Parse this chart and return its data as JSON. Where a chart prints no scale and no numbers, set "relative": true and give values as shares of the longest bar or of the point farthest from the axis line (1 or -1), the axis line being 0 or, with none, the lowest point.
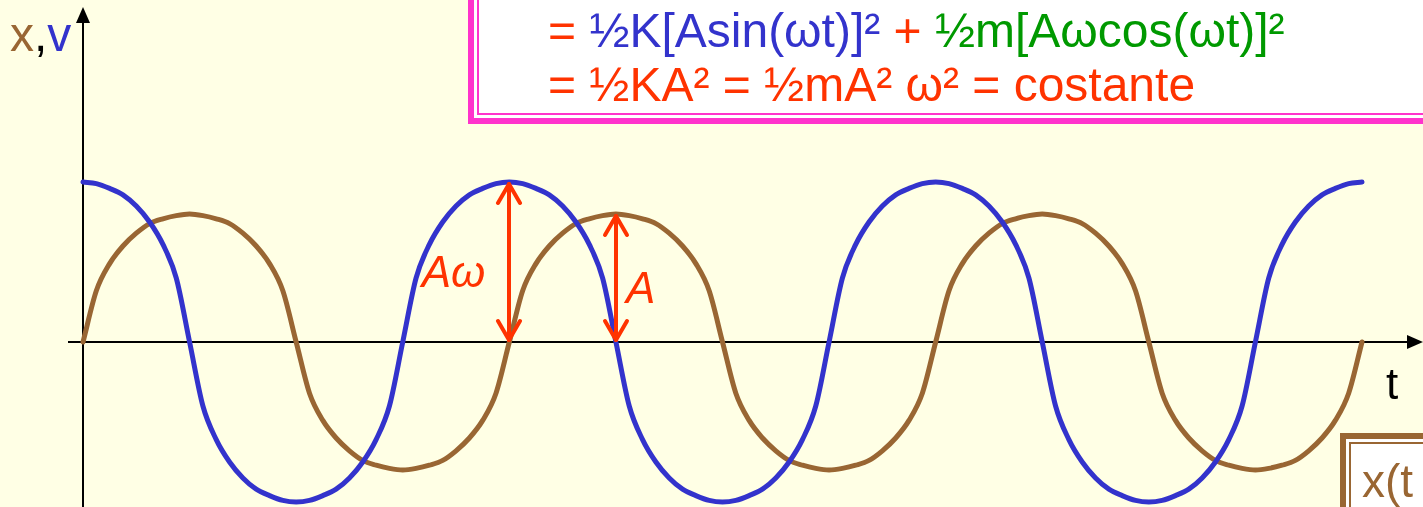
{
  "chart_data": {
    "type": "line",
    "relative": true,
    "tick_labels": false,
    "xlabel": "t",
    "ylabel": "x,v",
    "categories": [
      null,
      null,
      null,
      null,
      null,
      null,
      null,
      null,
      null,
      null,
      null,
      null,
      null,
      null,
      null,
      null,
      null,
      null,
      null,
      null,
      null,
      null,
      null,
      null,
      null,
      null,
      null,
      null,
      null,
      null,
      null,
      null,
      null,
      null,
      null,
      null,
      null,
      null,
      null,
      null,
      null,
      null,
      null,
      null,
      null,
      null,
      null,
      null,
      null,
      null,
      null,
      null,
      null,
      null,
      null,
      null,
      null,
      null,
      null,
      null,
      null,
      null,
      null,
      null,
      null,
      null,
      null,
      null,
      null,
      null,
      null,
      null,
      null,
      null,
      null,
      null,
      null,
      null,
      null,
      null,
      null,
      null,
      null,
      null,
      null,
      null,
      null,
      null,
      null,
      null,
      null,
      null,
      null,
      null,
      null,
      null,
      null
    ],
    "series": [
      {
        "color": "#3333cc",
        "values": [
          1,
          0.99,
          0.96,
          0.92,
          0.85,
          0.75,
          0.61,
          0.4,
          0,
          -0.4,
          -0.61,
          -0.75,
          -0.85,
          -0.92,
          -0.96,
          -0.99,
          -1,
          -0.99,
          -0.96,
          -0.92,
          -0.85,
          -0.75,
          -0.61,
          -0.4,
          0,
          0.4,
          0.61,
          0.75,
          0.85,
          0.92,
          0.96,
          0.99,
          1,
          0.99,
          0.96,
          0.92,
          0.85,
          0.75,
          0.61,
          0.4,
          0,
          -0.4,
          -0.61,
          -0.75,
          -0.85,
          -0.92,
          -0.96,
          -0.99,
          -1,
          -0.99,
          -0.96,
          -0.92,
          -0.85,
          -0.75,
          -0.61,
          -0.4,
          0,
          0.4,
          0.61,
          0.75,
          0.85,
          0.92,
          0.96,
          0.99,
          1,
          0.99,
          0.96,
          0.92,
          0.85,
          0.75,
          0.61,
          0.4,
          0,
          -0.4,
          -0.61,
          -0.75,
          -0.85,
          -0.92,
          -0.96,
          -0.99,
          -1,
          -0.99,
          -0.96,
          -0.92,
          -0.85,
          -0.75,
          -0.61,
          -0.4,
          0,
          0.4,
          0.61,
          0.75,
          0.85,
          0.92,
          0.96,
          0.99,
          1
        ]
      },
      {
        "color": "#996633",
        "values": [
          0,
          0.32,
          0.49,
          0.6,
          0.68,
          0.74,
          0.77,
          0.79,
          0.8,
          0.79,
          0.77,
          0.74,
          0.68,
          0.6,
          0.49,
          0.32,
          0,
          -0.32,
          -0.49,
          -0.6,
          -0.68,
          -0.74,
          -0.77,
          -0.79,
          -0.8,
          -0.79,
          -0.77,
          -0.74,
          -0.68,
          -0.6,
          -0.49,
          -0.32,
          0,
          0.32,
          0.49,
          0.6,
          0.68,
          0.74,
          0.77,
          0.79,
          0.8,
          0.79,
          0.77,
          0.74,
          0.68,
          0.6,
          0.49,
          0.32,
          0,
          -0.32,
          -0.49,
          -0.6,
          -0.68,
          -0.74,
          -0.77,
          -0.79,
          -0.8,
          -0.79,
          -0.77,
          -0.74,
          -0.68,
          -0.6,
          -0.49,
          -0.32,
          0,
          0.32,
          0.49,
          0.6,
          0.68,
          0.74,
          0.77,
          0.79,
          0.8,
          0.79,
          0.77,
          0.74,
          0.68,
          0.6,
          0.49,
          0.32,
          0,
          -0.32,
          -0.49,
          -0.6,
          -0.68,
          -0.74,
          -0.77,
          -0.79,
          -0.8,
          -0.79,
          -0.77,
          -0.74,
          -0.68,
          -0.6,
          -0.49,
          -0.32,
          0
        ]
      }
    ],
    "annotations": [
      "Aω",
      "A",
      "=",
      "½K[Asin(ωt)]²",
      "+",
      "½m[Aωcos(ωt)]²",
      "= ½KA² = ½mA² ω² = costante",
      "x(t"
    ]
  }
}
